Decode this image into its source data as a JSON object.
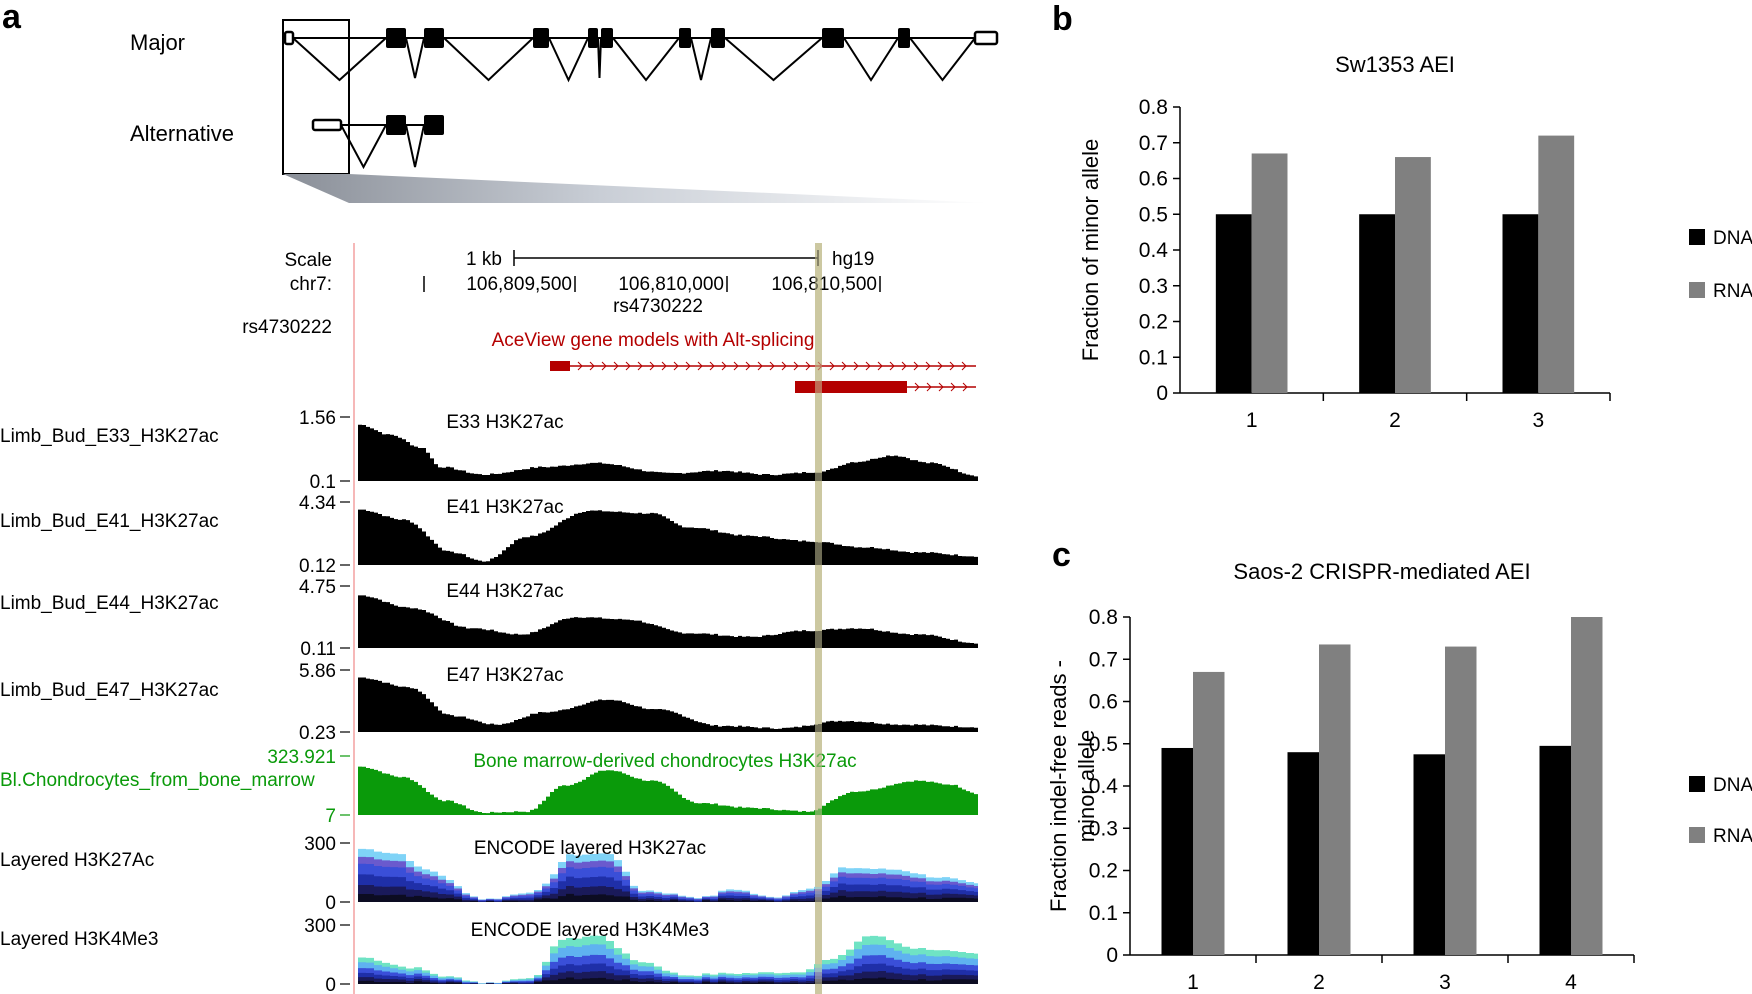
{
  "panel_a": {
    "letter": "a",
    "major_label": "Major",
    "alternative_label": "Alternative",
    "browser": {
      "scale_label": "Scale",
      "chrom_label": "chr7:",
      "scale_bar_label": "1 kb",
      "assembly": "hg19",
      "positions": [
        "106,809,500",
        "106,810,000",
        "106,810,500"
      ],
      "snp_marker": "rs4730222",
      "snp_track_label": "rs4730222",
      "aceview_title": "AceView gene models with Alt-splicing",
      "tracks": [
        {
          "name": "Limb_Bud_E33_H3K27ac",
          "title": "E33 H3K27ac",
          "max": "1.56",
          "min": "0.1"
        },
        {
          "name": "Limb_Bud_E41_H3K27ac",
          "title": "E41 H3K27ac",
          "max": "4.34",
          "min": "0.12"
        },
        {
          "name": "Limb_Bud_E44_H3K27ac",
          "title": "E44 H3K27ac",
          "max": "4.75",
          "min": "0.11"
        },
        {
          "name": "Limb_Bud_E47_H3K27ac",
          "title": "E47 H3K27ac",
          "max": "5.86",
          "min": "0.23"
        },
        {
          "name": "Bl.Chondrocytes_from_bone_marrow",
          "title": "Bone marrow-derived chondrocytes H3K27ac",
          "max": "323.921",
          "min": "7"
        },
        {
          "name": "Layered H3K27Ac",
          "title": "ENCODE layered H3K27ac",
          "max": "300",
          "min": "0"
        },
        {
          "name": "Layered H3K4Me3",
          "title": "ENCODE layered H3K4Me3",
          "max": "300",
          "min": "0"
        }
      ]
    }
  },
  "colors": {
    "dna": "#000000",
    "rna": "#808080",
    "aceview": "#b40000",
    "chondro": "#0a9a0a",
    "highlight": "#c8c49a"
  },
  "chart_data": [
    {
      "type": "bar",
      "letter": "b",
      "title": "Sw1353 AEI",
      "xlabel": "",
      "ylabel": "Fraction of minor allele",
      "categories": [
        "1",
        "2",
        "3"
      ],
      "series": [
        {
          "name": "DNA",
          "values": [
            0.5,
            0.5,
            0.5
          ]
        },
        {
          "name": "RNA",
          "values": [
            0.67,
            0.66,
            0.72
          ]
        }
      ],
      "ylim": [
        0,
        0.8
      ],
      "yticks": [
        "0",
        "0.1",
        "0.2",
        "0.3",
        "0.4",
        "0.5",
        "0.6",
        "0.7",
        "0.8"
      ],
      "legend": "right"
    },
    {
      "type": "bar",
      "letter": "c",
      "title": "Saos-2 CRISPR-mediated AEI",
      "xlabel": "",
      "ylabel_lines": [
        "Fraction indel-free reads -",
        "minor allele"
      ],
      "categories": [
        "1",
        "2",
        "3",
        "4"
      ],
      "series": [
        {
          "name": "DNA",
          "values": [
            0.49,
            0.48,
            0.475,
            0.495
          ]
        },
        {
          "name": "RNA",
          "values": [
            0.67,
            0.735,
            0.73,
            0.8
          ]
        }
      ],
      "ylim": [
        0,
        0.8
      ],
      "yticks": [
        "0",
        "0.1",
        "0.2",
        "0.3",
        "0.4",
        "0.5",
        "0.6",
        "0.7",
        "0.8"
      ],
      "legend": "right"
    }
  ]
}
